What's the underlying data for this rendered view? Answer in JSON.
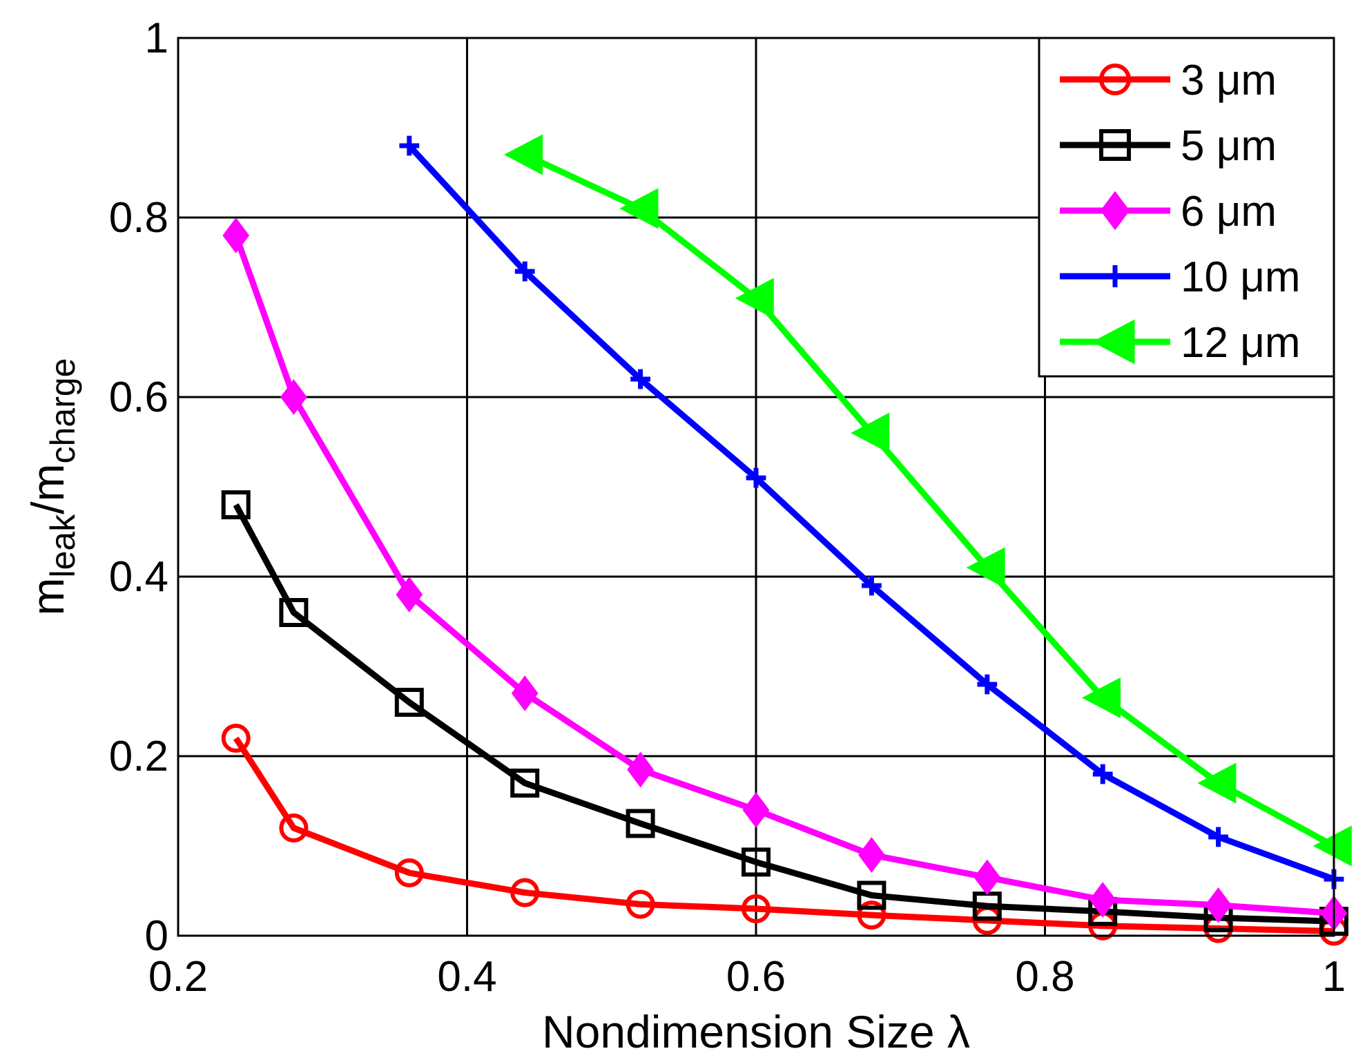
{
  "chart_data": {
    "type": "line",
    "title": "",
    "xlabel": "Nondimension Size λ",
    "ylabel": {
      "base": "m",
      "sub1": "leak",
      "slash": "/m",
      "sub2": "charge"
    },
    "xlim": [
      0.2,
      1.0
    ],
    "ylim": [
      0,
      1.0
    ],
    "xticks": [
      0.2,
      0.4,
      0.6,
      0.8,
      1.0
    ],
    "xtick_labels": [
      "0.2",
      "0.4",
      "0.6",
      "0.8",
      "1"
    ],
    "yticks": [
      0,
      0.2,
      0.4,
      0.6,
      0.8,
      1.0
    ],
    "ytick_labels": [
      "0",
      "0.2",
      "0.4",
      "0.6",
      "0.8",
      "1"
    ],
    "grid": true,
    "legend_position": "top-right",
    "series": [
      {
        "name": "3 μm",
        "color": "#ff0000",
        "marker": "circle",
        "x": [
          0.24,
          0.28,
          0.36,
          0.44,
          0.52,
          0.6,
          0.68,
          0.76,
          0.84,
          0.92,
          1.0
        ],
        "y": [
          0.22,
          0.12,
          0.07,
          0.048,
          0.035,
          0.03,
          0.023,
          0.017,
          0.011,
          0.008,
          0.005
        ]
      },
      {
        "name": "5 μm",
        "color": "#000000",
        "marker": "square",
        "x": [
          0.24,
          0.28,
          0.36,
          0.44,
          0.52,
          0.6,
          0.68,
          0.76,
          0.84,
          0.92,
          1.0
        ],
        "y": [
          0.48,
          0.36,
          0.26,
          0.17,
          0.125,
          0.082,
          0.045,
          0.033,
          0.027,
          0.02,
          0.016
        ]
      },
      {
        "name": "6 μm",
        "color": "#ff00ff",
        "marker": "diamond",
        "x": [
          0.24,
          0.28,
          0.36,
          0.44,
          0.52,
          0.6,
          0.68,
          0.76,
          0.84,
          0.92,
          1.0
        ],
        "y": [
          0.78,
          0.6,
          0.38,
          0.27,
          0.185,
          0.14,
          0.09,
          0.065,
          0.04,
          0.034,
          0.025
        ]
      },
      {
        "name": "10 μm",
        "color": "#0000ff",
        "marker": "plus",
        "x": [
          0.36,
          0.44,
          0.52,
          0.6,
          0.68,
          0.76,
          0.84,
          0.92,
          1.0
        ],
        "y": [
          0.88,
          0.74,
          0.62,
          0.51,
          0.39,
          0.28,
          0.18,
          0.11,
          0.063
        ]
      },
      {
        "name": "12 μm",
        "color": "#00ff00",
        "marker": "triangle-left",
        "x": [
          0.44,
          0.52,
          0.6,
          0.68,
          0.76,
          0.84,
          0.92,
          1.0
        ],
        "y": [
          0.87,
          0.81,
          0.71,
          0.56,
          0.41,
          0.265,
          0.17,
          0.1
        ]
      }
    ]
  }
}
